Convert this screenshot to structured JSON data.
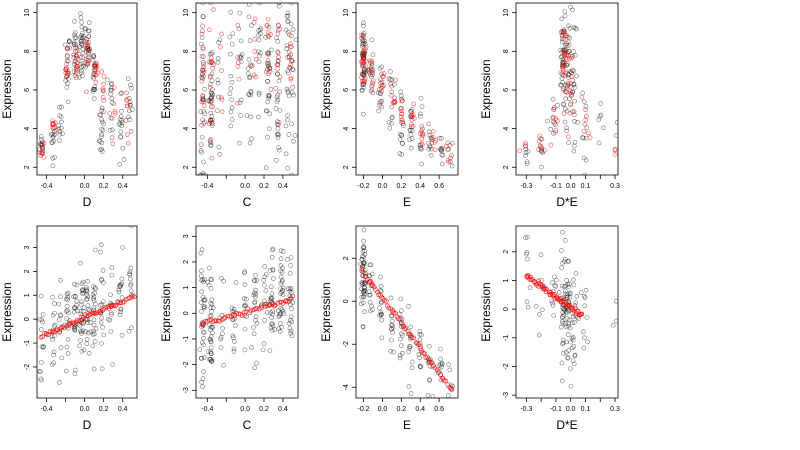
{
  "colors": {
    "observed": "#000000",
    "fitted": "#ff0000",
    "axis": "#000000",
    "background": "#ffffff"
  },
  "chart_data": [
    {
      "type": "scatter",
      "xlabel": "D",
      "ylabel": "Expression",
      "xlim": [
        -0.5,
        0.55
      ],
      "ylim": [
        1.6,
        10.5
      ],
      "xticks": [
        -0.4,
        -0.2,
        0.0,
        0.2,
        0.4
      ],
      "xtick_labels": [
        "-0.4",
        "",
        "0.0",
        "0.2",
        "0.4"
      ],
      "yticks": [
        2,
        4,
        6,
        8,
        10
      ],
      "ytick_labels": [
        "2",
        "4",
        "6",
        "8",
        "10"
      ],
      "observed_clusters": [
        {
          "x": -0.45,
          "y": 3.1,
          "sd": 0.35,
          "n": 14
        },
        {
          "x": -0.33,
          "y": 3.4,
          "sd": 0.5,
          "n": 14
        },
        {
          "x": -0.25,
          "y": 4.2,
          "sd": 0.6,
          "n": 12
        },
        {
          "x": -0.18,
          "y": 7.2,
          "sd": 0.9,
          "n": 18
        },
        {
          "x": -0.1,
          "y": 7.8,
          "sd": 0.7,
          "n": 22
        },
        {
          "x": -0.03,
          "y": 8.0,
          "sd": 0.9,
          "n": 28
        },
        {
          "x": 0.03,
          "y": 8.3,
          "sd": 0.8,
          "n": 24
        },
        {
          "x": 0.1,
          "y": 6.9,
          "sd": 0.8,
          "n": 22
        },
        {
          "x": 0.18,
          "y": 4.3,
          "sd": 1.1,
          "n": 18
        },
        {
          "x": 0.28,
          "y": 5.6,
          "sd": 0.8,
          "n": 14
        },
        {
          "x": 0.38,
          "y": 4.0,
          "sd": 0.8,
          "n": 16
        },
        {
          "x": 0.48,
          "y": 5.4,
          "sd": 1.0,
          "n": 12
        }
      ],
      "fitted_clusters": [
        {
          "x": -0.45,
          "y": 3.0,
          "sd": 0.3,
          "n": 8
        },
        {
          "x": -0.33,
          "y": 4.0,
          "sd": 0.3,
          "n": 8
        },
        {
          "x": -0.18,
          "y": 7.3,
          "sd": 0.5,
          "n": 12
        },
        {
          "x": -0.08,
          "y": 7.7,
          "sd": 0.5,
          "n": 12
        },
        {
          "x": 0.03,
          "y": 7.6,
          "sd": 0.5,
          "n": 12
        },
        {
          "x": 0.12,
          "y": 7.0,
          "sd": 0.5,
          "n": 10
        },
        {
          "x": 0.2,
          "y": 6.2,
          "sd": 0.6,
          "n": 8
        },
        {
          "x": 0.3,
          "y": 4.8,
          "sd": 0.6,
          "n": 6
        },
        {
          "x": 0.45,
          "y": 4.5,
          "sd": 0.7,
          "n": 8
        }
      ]
    },
    {
      "type": "scatter",
      "xlabel": "C",
      "ylabel": "Expression",
      "xlim": [
        -0.52,
        0.56
      ],
      "ylim": [
        1.6,
        10.5
      ],
      "xticks": [
        -0.4,
        -0.2,
        0.0,
        0.2,
        0.4
      ],
      "xtick_labels": [
        "-0.4",
        "",
        "0.0",
        "0.2",
        "0.4"
      ],
      "yticks": [
        2,
        4,
        6,
        8,
        10
      ],
      "ytick_labels": [
        "2",
        "4",
        "6",
        "8",
        "10"
      ],
      "observed_clusters": [
        {
          "x": -0.45,
          "y": 5.5,
          "sd": 2.2,
          "n": 36
        },
        {
          "x": -0.36,
          "y": 5.6,
          "sd": 2.2,
          "n": 36
        },
        {
          "x": -0.28,
          "y": 6.0,
          "sd": 2.0,
          "n": 10
        },
        {
          "x": -0.15,
          "y": 5.8,
          "sd": 2.0,
          "n": 14
        },
        {
          "x": -0.05,
          "y": 6.2,
          "sd": 2.0,
          "n": 12
        },
        {
          "x": 0.05,
          "y": 6.4,
          "sd": 1.9,
          "n": 20
        },
        {
          "x": 0.15,
          "y": 6.5,
          "sd": 1.9,
          "n": 14
        },
        {
          "x": 0.25,
          "y": 6.8,
          "sd": 1.9,
          "n": 28
        },
        {
          "x": 0.35,
          "y": 6.5,
          "sd": 2.0,
          "n": 30
        },
        {
          "x": 0.45,
          "y": 6.8,
          "sd": 2.0,
          "n": 24
        },
        {
          "x": 0.5,
          "y": 7.0,
          "sd": 2.0,
          "n": 18
        }
      ],
      "fitted_clusters": [
        {
          "x": -0.45,
          "y": 6.2,
          "sd": 1.8,
          "n": 16
        },
        {
          "x": -0.36,
          "y": 6.5,
          "sd": 1.8,
          "n": 16
        },
        {
          "x": -0.25,
          "y": 6.7,
          "sd": 1.6,
          "n": 6
        },
        {
          "x": -0.08,
          "y": 6.9,
          "sd": 1.5,
          "n": 6
        },
        {
          "x": 0.1,
          "y": 7.2,
          "sd": 1.5,
          "n": 8
        },
        {
          "x": 0.25,
          "y": 7.5,
          "sd": 1.6,
          "n": 12
        },
        {
          "x": 0.35,
          "y": 7.4,
          "sd": 1.7,
          "n": 12
        },
        {
          "x": 0.48,
          "y": 7.5,
          "sd": 1.6,
          "n": 10
        }
      ]
    },
    {
      "type": "scatter",
      "xlabel": "E",
      "ylabel": "Expression",
      "xlim": [
        -0.28,
        0.8
      ],
      "ylim": [
        1.6,
        10.5
      ],
      "xticks": [
        -0.2,
        0.0,
        0.2,
        0.4,
        0.6
      ],
      "xtick_labels": [
        "-0.2",
        "0.0",
        "0.2",
        "0.4",
        "0.6"
      ],
      "yticks": [
        2,
        4,
        6,
        8,
        10
      ],
      "ytick_labels": [
        "2",
        "4",
        "6",
        "8",
        "10"
      ],
      "observed_clusters": [
        {
          "x": -0.2,
          "y": 7.6,
          "sd": 1.0,
          "n": 50
        },
        {
          "x": -0.12,
          "y": 6.8,
          "sd": 1.0,
          "n": 16
        },
        {
          "x": -0.02,
          "y": 6.4,
          "sd": 0.9,
          "n": 14
        },
        {
          "x": 0.1,
          "y": 5.5,
          "sd": 1.0,
          "n": 14
        },
        {
          "x": 0.2,
          "y": 4.6,
          "sd": 1.0,
          "n": 16
        },
        {
          "x": 0.3,
          "y": 4.0,
          "sd": 0.9,
          "n": 14
        },
        {
          "x": 0.4,
          "y": 3.7,
          "sd": 0.8,
          "n": 12
        },
        {
          "x": 0.5,
          "y": 3.2,
          "sd": 0.6,
          "n": 12
        },
        {
          "x": 0.62,
          "y": 2.9,
          "sd": 0.4,
          "n": 10
        },
        {
          "x": 0.72,
          "y": 2.8,
          "sd": 0.4,
          "n": 6
        }
      ],
      "fitted_clusters": [
        {
          "x": -0.2,
          "y": 7.5,
          "sd": 0.7,
          "n": 24
        },
        {
          "x": -0.12,
          "y": 6.8,
          "sd": 0.5,
          "n": 10
        },
        {
          "x": 0.0,
          "y": 6.3,
          "sd": 0.4,
          "n": 10
        },
        {
          "x": 0.12,
          "y": 5.5,
          "sd": 0.5,
          "n": 8
        },
        {
          "x": 0.2,
          "y": 4.9,
          "sd": 0.5,
          "n": 8
        },
        {
          "x": 0.32,
          "y": 4.2,
          "sd": 0.5,
          "n": 8
        },
        {
          "x": 0.42,
          "y": 3.8,
          "sd": 0.4,
          "n": 8
        },
        {
          "x": 0.55,
          "y": 3.2,
          "sd": 0.4,
          "n": 6
        },
        {
          "x": 0.7,
          "y": 2.5,
          "sd": 0.4,
          "n": 6
        }
      ]
    },
    {
      "type": "scatter",
      "xlabel": "D*E",
      "ylabel": "Expression",
      "xlim": [
        -0.37,
        0.32
      ],
      "ylim": [
        1.6,
        10.5
      ],
      "xticks": [
        -0.3,
        -0.2,
        -0.1,
        0.0,
        0.1,
        0.2,
        0.3
      ],
      "xtick_labels": [
        "-0.3",
        "",
        "-0.1",
        "0.0",
        "0.1",
        "",
        "0.3"
      ],
      "yticks": [
        2,
        4,
        6,
        8,
        10
      ],
      "ytick_labels": [
        "2",
        "4",
        "6",
        "8",
        "10"
      ],
      "observed_clusters": [
        {
          "x": -0.05,
          "y": 7.5,
          "sd": 1.4,
          "n": 40
        },
        {
          "x": -0.02,
          "y": 7.2,
          "sd": 1.5,
          "n": 34
        },
        {
          "x": 0.02,
          "y": 6.2,
          "sd": 1.8,
          "n": 26
        },
        {
          "x": -0.12,
          "y": 4.0,
          "sd": 1.0,
          "n": 10
        },
        {
          "x": -0.2,
          "y": 3.2,
          "sd": 0.5,
          "n": 8
        },
        {
          "x": -0.3,
          "y": 2.9,
          "sd": 0.3,
          "n": 6
        },
        {
          "x": 0.1,
          "y": 3.6,
          "sd": 1.0,
          "n": 10
        },
        {
          "x": 0.2,
          "y": 3.7,
          "sd": 1.0,
          "n": 6
        },
        {
          "x": 0.3,
          "y": 4.5,
          "sd": 1.5,
          "n": 3
        }
      ],
      "fitted_clusters": [
        {
          "x": -0.04,
          "y": 7.4,
          "sd": 1.0,
          "n": 26
        },
        {
          "x": 0.0,
          "y": 6.4,
          "sd": 1.0,
          "n": 16
        },
        {
          "x": -0.1,
          "y": 4.2,
          "sd": 0.6,
          "n": 8
        },
        {
          "x": -0.2,
          "y": 3.2,
          "sd": 0.4,
          "n": 6
        },
        {
          "x": -0.3,
          "y": 2.8,
          "sd": 0.3,
          "n": 4
        },
        {
          "x": 0.1,
          "y": 4.5,
          "sd": 0.9,
          "n": 8
        },
        {
          "x": 0.3,
          "y": 2.6,
          "sd": 0.3,
          "n": 2
        }
      ]
    },
    {
      "type": "scatter",
      "xlabel": "D",
      "ylabel": "Expression",
      "xlim": [
        -0.5,
        0.55
      ],
      "ylim": [
        -3.3,
        3.9
      ],
      "xticks": [
        -0.4,
        -0.2,
        0.0,
        0.2,
        0.4
      ],
      "xtick_labels": [
        "-0.4",
        "",
        "0.0",
        "0.2",
        "0.4"
      ],
      "yticks": [
        -2,
        -1,
        0,
        1,
        2,
        3
      ],
      "ytick_labels": [
        "-2",
        "-1",
        "0",
        "1",
        "2",
        "3"
      ],
      "observed_clusters": [
        {
          "x": -0.45,
          "y": -0.8,
          "sd": 0.8,
          "n": 14
        },
        {
          "x": -0.33,
          "y": -0.6,
          "sd": 0.8,
          "n": 14
        },
        {
          "x": -0.25,
          "y": -0.3,
          "sd": 0.8,
          "n": 12
        },
        {
          "x": -0.18,
          "y": 0.0,
          "sd": 1.0,
          "n": 18
        },
        {
          "x": -0.1,
          "y": 0.1,
          "sd": 1.0,
          "n": 22
        },
        {
          "x": -0.03,
          "y": 0.1,
          "sd": 1.0,
          "n": 28
        },
        {
          "x": 0.03,
          "y": 0.2,
          "sd": 1.0,
          "n": 24
        },
        {
          "x": 0.1,
          "y": 0.3,
          "sd": 1.0,
          "n": 22
        },
        {
          "x": 0.18,
          "y": 0.4,
          "sd": 1.0,
          "n": 18
        },
        {
          "x": 0.28,
          "y": 0.6,
          "sd": 1.0,
          "n": 14
        },
        {
          "x": 0.38,
          "y": 0.7,
          "sd": 1.0,
          "n": 16
        },
        {
          "x": 0.48,
          "y": 1.0,
          "sd": 1.1,
          "n": 12
        }
      ],
      "fitted_line": {
        "x_from": -0.46,
        "x_to": 0.52,
        "slope": 1.75,
        "intercept": 0.05,
        "n": 60
      }
    },
    {
      "type": "scatter",
      "xlabel": "C",
      "ylabel": "Expression",
      "xlim": [
        -0.52,
        0.56
      ],
      "ylim": [
        -3.3,
        3.4
      ],
      "xticks": [
        -0.4,
        -0.2,
        0.0,
        0.2,
        0.4
      ],
      "xtick_labels": [
        "-0.4",
        "",
        "0.0",
        "0.2",
        "0.4"
      ],
      "yticks": [
        -3,
        -2,
        -1,
        0,
        1,
        2,
        3
      ],
      "ytick_labels": [
        "-3",
        "-2",
        "-1",
        "0",
        "1",
        "2",
        "3"
      ],
      "observed_clusters": [
        {
          "x": -0.45,
          "y": -0.4,
          "sd": 1.1,
          "n": 36
        },
        {
          "x": -0.36,
          "y": -0.2,
          "sd": 1.1,
          "n": 36
        },
        {
          "x": -0.25,
          "y": -0.2,
          "sd": 1.0,
          "n": 10
        },
        {
          "x": -0.12,
          "y": 0.0,
          "sd": 1.0,
          "n": 14
        },
        {
          "x": 0.0,
          "y": 0.1,
          "sd": 1.0,
          "n": 12
        },
        {
          "x": 0.1,
          "y": 0.2,
          "sd": 1.0,
          "n": 20
        },
        {
          "x": 0.2,
          "y": 0.3,
          "sd": 1.0,
          "n": 14
        },
        {
          "x": 0.28,
          "y": 0.4,
          "sd": 1.0,
          "n": 28
        },
        {
          "x": 0.38,
          "y": 0.4,
          "sd": 1.0,
          "n": 30
        },
        {
          "x": 0.48,
          "y": 0.5,
          "sd": 1.0,
          "n": 24
        }
      ],
      "fitted_line": {
        "x_from": -0.46,
        "x_to": 0.5,
        "slope": 1.05,
        "intercept": 0.05,
        "n": 50
      }
    },
    {
      "type": "scatter",
      "xlabel": "E",
      "ylabel": "Expression",
      "xlim": [
        -0.28,
        0.8
      ],
      "ylim": [
        -4.5,
        3.5
      ],
      "xticks": [
        -0.2,
        0.0,
        0.2,
        0.4,
        0.6
      ],
      "xtick_labels": [
        "-0.2",
        "0.0",
        "0.2",
        "0.4",
        "0.6"
      ],
      "yticks": [
        -4,
        -2,
        0,
        2
      ],
      "ytick_labels": [
        "-4",
        "-2",
        "0",
        "2"
      ],
      "observed_clusters": [
        {
          "x": -0.2,
          "y": 1.2,
          "sd": 1.0,
          "n": 50
        },
        {
          "x": -0.12,
          "y": 0.6,
          "sd": 1.0,
          "n": 16
        },
        {
          "x": -0.02,
          "y": 0.0,
          "sd": 0.9,
          "n": 14
        },
        {
          "x": 0.1,
          "y": -0.8,
          "sd": 0.9,
          "n": 14
        },
        {
          "x": 0.2,
          "y": -1.4,
          "sd": 0.9,
          "n": 16
        },
        {
          "x": 0.3,
          "y": -2.0,
          "sd": 0.9,
          "n": 14
        },
        {
          "x": 0.4,
          "y": -2.6,
          "sd": 0.8,
          "n": 12
        },
        {
          "x": 0.5,
          "y": -2.9,
          "sd": 0.7,
          "n": 12
        },
        {
          "x": 0.62,
          "y": -3.3,
          "sd": 0.6,
          "n": 10
        },
        {
          "x": 0.72,
          "y": -3.6,
          "sd": 0.5,
          "n": 6
        }
      ],
      "fitted_line": {
        "x_from": -0.22,
        "x_to": 0.74,
        "slope": -5.8,
        "intercept": 0.15,
        "n": 60
      }
    },
    {
      "type": "scatter",
      "xlabel": "D*E",
      "ylabel": "Expression",
      "xlim": [
        -0.37,
        0.32
      ],
      "ylim": [
        -3.1,
        2.9
      ],
      "xticks": [
        -0.3,
        -0.2,
        -0.1,
        0.0,
        0.1,
        0.2,
        0.3
      ],
      "xtick_labels": [
        "-0.3",
        "",
        "-0.1",
        "0.0",
        "0.1",
        "",
        "0.3"
      ],
      "yticks": [
        -3,
        -2,
        -1,
        0,
        1,
        2
      ],
      "ytick_labels": [
        "-3",
        "-2",
        "-1",
        "0",
        "1",
        "2"
      ],
      "observed_clusters": [
        {
          "x": -0.05,
          "y": 0.2,
          "sd": 1.0,
          "n": 40
        },
        {
          "x": -0.02,
          "y": 0.0,
          "sd": 1.1,
          "n": 34
        },
        {
          "x": 0.02,
          "y": -0.3,
          "sd": 1.0,
          "n": 26
        },
        {
          "x": -0.12,
          "y": 0.6,
          "sd": 0.6,
          "n": 10
        },
        {
          "x": -0.2,
          "y": 0.9,
          "sd": 0.6,
          "n": 8
        },
        {
          "x": -0.3,
          "y": 1.4,
          "sd": 0.6,
          "n": 8
        },
        {
          "x": 0.1,
          "y": -0.5,
          "sd": 0.7,
          "n": 10
        },
        {
          "x": 0.3,
          "y": 0.5,
          "sd": 1.2,
          "n": 3
        }
      ],
      "fitted_line": {
        "x_from": -0.3,
        "x_to": 0.08,
        "slope": -3.7,
        "intercept": 0.05,
        "n": 60
      }
    }
  ]
}
